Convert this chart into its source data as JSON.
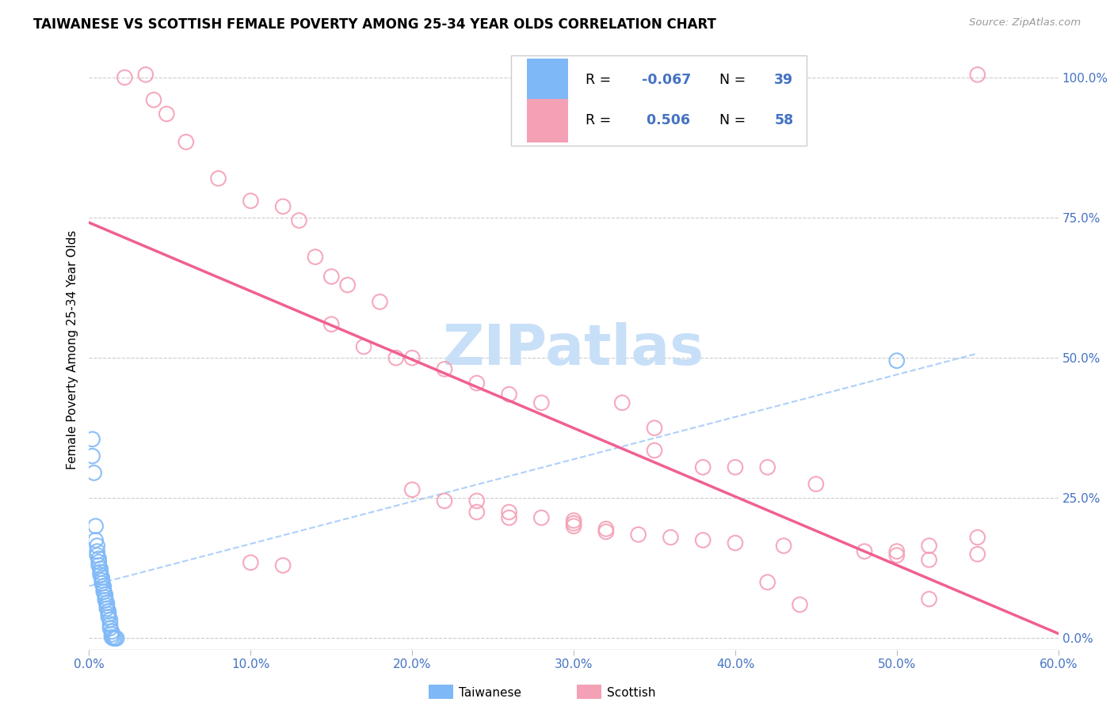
{
  "title": "TAIWANESE VS SCOTTISH FEMALE POVERTY AMONG 25-34 YEAR OLDS CORRELATION CHART",
  "source": "Source: ZipAtlas.com",
  "ylabel": "Female Poverty Among 25-34 Year Olds",
  "xlabel_taiwanese": "Taiwanese",
  "xlabel_scottish": "Scottish",
  "xlim": [
    0.0,
    0.6
  ],
  "ylim": [
    -0.02,
    1.05
  ],
  "x_tick_labels": [
    "0.0%",
    "10.0%",
    "20.0%",
    "30.0%",
    "40.0%",
    "50.0%",
    "60.0%"
  ],
  "x_tick_values": [
    0.0,
    0.1,
    0.2,
    0.3,
    0.4,
    0.5,
    0.6
  ],
  "y_tick_labels_right": [
    "0.0%",
    "25.0%",
    "50.0%",
    "75.0%",
    "100.0%"
  ],
  "y_tick_values_right": [
    0.0,
    0.25,
    0.5,
    0.75,
    1.0
  ],
  "taiwanese_R": -0.067,
  "taiwanese_N": 39,
  "scottish_R": 0.506,
  "scottish_N": 58,
  "taiwanese_color": "#7eb8f7",
  "scottish_color": "#f4a0b5",
  "taiwanese_line_color": "#a0c8f8",
  "scottish_line_color": "#f06090",
  "grid_color": "#cccccc",
  "watermark_text": "ZIPatlas",
  "watermark_color": "#c8dff8",
  "taiwanese_scatter": [
    [
      0.002,
      0.355
    ],
    [
      0.002,
      0.325
    ],
    [
      0.003,
      0.295
    ],
    [
      0.004,
      0.2
    ],
    [
      0.004,
      0.175
    ],
    [
      0.005,
      0.165
    ],
    [
      0.005,
      0.155
    ],
    [
      0.005,
      0.148
    ],
    [
      0.006,
      0.142
    ],
    [
      0.006,
      0.136
    ],
    [
      0.006,
      0.13
    ],
    [
      0.007,
      0.124
    ],
    [
      0.007,
      0.118
    ],
    [
      0.007,
      0.113
    ],
    [
      0.008,
      0.108
    ],
    [
      0.008,
      0.103
    ],
    [
      0.008,
      0.098
    ],
    [
      0.009,
      0.093
    ],
    [
      0.009,
      0.088
    ],
    [
      0.009,
      0.083
    ],
    [
      0.01,
      0.078
    ],
    [
      0.01,
      0.073
    ],
    [
      0.01,
      0.068
    ],
    [
      0.011,
      0.063
    ],
    [
      0.011,
      0.058
    ],
    [
      0.011,
      0.053
    ],
    [
      0.012,
      0.048
    ],
    [
      0.012,
      0.043
    ],
    [
      0.012,
      0.038
    ],
    [
      0.013,
      0.033
    ],
    [
      0.013,
      0.025
    ],
    [
      0.013,
      0.018
    ],
    [
      0.014,
      0.012
    ],
    [
      0.014,
      0.007
    ],
    [
      0.014,
      0.002
    ],
    [
      0.015,
      0.0
    ],
    [
      0.016,
      0.0
    ],
    [
      0.017,
      0.0
    ],
    [
      0.5,
      0.495
    ]
  ],
  "scottish_scatter": [
    [
      0.022,
      1.0
    ],
    [
      0.035,
      1.005
    ],
    [
      0.04,
      0.96
    ],
    [
      0.048,
      0.935
    ],
    [
      0.06,
      0.885
    ],
    [
      0.08,
      0.82
    ],
    [
      0.1,
      0.78
    ],
    [
      0.1,
      0.135
    ],
    [
      0.12,
      0.77
    ],
    [
      0.12,
      0.13
    ],
    [
      0.13,
      0.745
    ],
    [
      0.14,
      0.68
    ],
    [
      0.15,
      0.645
    ],
    [
      0.15,
      0.56
    ],
    [
      0.16,
      0.63
    ],
    [
      0.17,
      0.52
    ],
    [
      0.18,
      0.6
    ],
    [
      0.19,
      0.5
    ],
    [
      0.2,
      0.5
    ],
    [
      0.2,
      0.265
    ],
    [
      0.22,
      0.48
    ],
    [
      0.22,
      0.245
    ],
    [
      0.24,
      0.455
    ],
    [
      0.24,
      0.245
    ],
    [
      0.24,
      0.225
    ],
    [
      0.26,
      0.435
    ],
    [
      0.26,
      0.225
    ],
    [
      0.26,
      0.215
    ],
    [
      0.28,
      0.42
    ],
    [
      0.28,
      0.215
    ],
    [
      0.3,
      0.21
    ],
    [
      0.3,
      0.205
    ],
    [
      0.3,
      0.2
    ],
    [
      0.32,
      0.195
    ],
    [
      0.32,
      0.19
    ],
    [
      0.33,
      0.42
    ],
    [
      0.34,
      0.185
    ],
    [
      0.35,
      0.375
    ],
    [
      0.35,
      0.335
    ],
    [
      0.36,
      0.18
    ],
    [
      0.38,
      0.305
    ],
    [
      0.38,
      0.175
    ],
    [
      0.4,
      0.305
    ],
    [
      0.4,
      0.17
    ],
    [
      0.42,
      0.305
    ],
    [
      0.42,
      0.1
    ],
    [
      0.43,
      0.165
    ],
    [
      0.44,
      0.06
    ],
    [
      0.45,
      0.275
    ],
    [
      0.48,
      0.155
    ],
    [
      0.5,
      0.155
    ],
    [
      0.5,
      0.148
    ],
    [
      0.52,
      0.165
    ],
    [
      0.52,
      0.14
    ],
    [
      0.52,
      0.07
    ],
    [
      0.55,
      1.005
    ],
    [
      0.55,
      0.18
    ],
    [
      0.55,
      0.15
    ]
  ]
}
